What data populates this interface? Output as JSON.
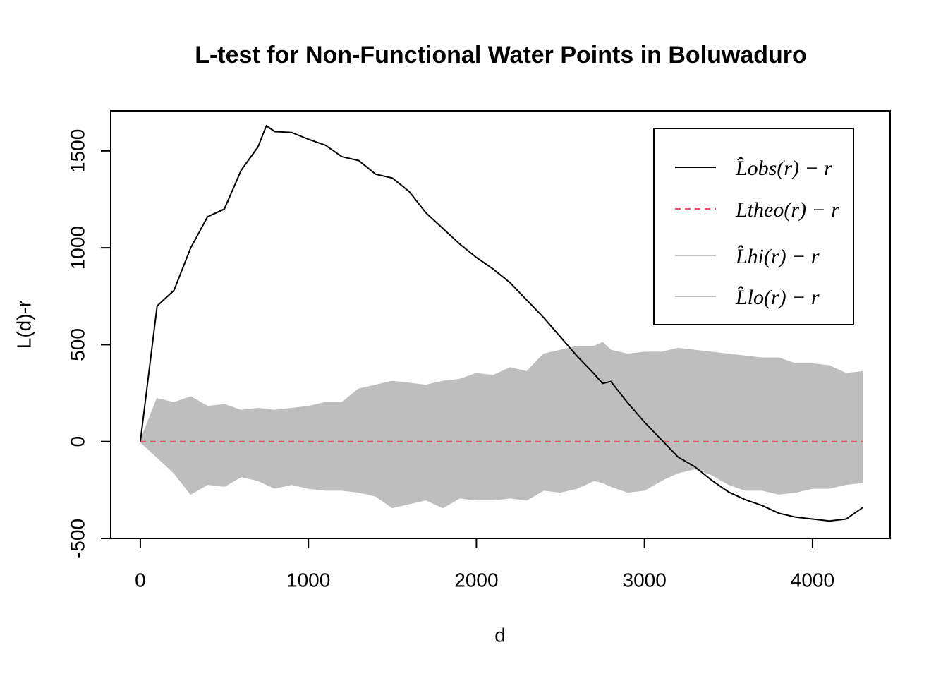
{
  "chart_data": {
    "type": "line",
    "title": "L-test for Non-Functional Water Points in Boluwaduro",
    "xlabel": "d",
    "ylabel": "L(d)-r",
    "x": [
      0,
      100,
      200,
      300,
      400,
      500,
      600,
      700,
      750,
      800,
      900,
      1000,
      1100,
      1200,
      1300,
      1400,
      1500,
      1600,
      1700,
      1800,
      1900,
      2000,
      2100,
      2200,
      2300,
      2400,
      2500,
      2600,
      2700,
      2750,
      2800,
      2900,
      3000,
      3100,
      3200,
      3300,
      3400,
      3500,
      3600,
      3700,
      3800,
      3900,
      4000,
      4100,
      4200,
      4300
    ],
    "series": [
      {
        "name": "L̂obs(r) − r",
        "color": "#000000",
        "dash": false,
        "values": [
          0,
          700,
          780,
          1000,
          1160,
          1200,
          1400,
          1520,
          1630,
          1600,
          1595,
          1560,
          1530,
          1470,
          1450,
          1380,
          1360,
          1290,
          1180,
          1100,
          1020,
          950,
          890,
          820,
          730,
          640,
          540,
          440,
          350,
          300,
          310,
          200,
          100,
          10,
          -80,
          -130,
          -200,
          -260,
          -300,
          -330,
          -370,
          -390,
          -400,
          -410,
          -400,
          -340
        ]
      },
      {
        "name": "Ltheo(r) − r",
        "color": "#df536b",
        "dash": true,
        "values": [
          0,
          0,
          0,
          0,
          0,
          0,
          0,
          0,
          0,
          0,
          0,
          0,
          0,
          0,
          0,
          0,
          0,
          0,
          0,
          0,
          0,
          0,
          0,
          0,
          0,
          0,
          0,
          0,
          0,
          0,
          0,
          0,
          0,
          0,
          0,
          0,
          0,
          0,
          0,
          0,
          0,
          0,
          0,
          0,
          0,
          0
        ]
      },
      {
        "name": "L̂hi(r) − r",
        "color": "#bebebe",
        "dash": false,
        "values": [
          0,
          220,
          200,
          230,
          180,
          190,
          160,
          170,
          165,
          160,
          170,
          180,
          200,
          200,
          270,
          290,
          310,
          300,
          290,
          310,
          320,
          350,
          340,
          380,
          360,
          450,
          470,
          490,
          490,
          510,
          470,
          450,
          460,
          460,
          480,
          470,
          460,
          450,
          440,
          430,
          430,
          400,
          400,
          390,
          350,
          360
        ]
      },
      {
        "name": "L̂lo(r) − r",
        "color": "#bebebe",
        "dash": false,
        "values": [
          0,
          -80,
          -160,
          -270,
          -220,
          -230,
          -180,
          -200,
          -220,
          -240,
          -220,
          -240,
          -250,
          -250,
          -260,
          -280,
          -340,
          -320,
          -300,
          -340,
          -290,
          -300,
          -300,
          -290,
          -300,
          -250,
          -260,
          -240,
          -200,
          -210,
          -230,
          -260,
          -250,
          -200,
          -160,
          -140,
          -170,
          -220,
          -250,
          -250,
          -270,
          -260,
          -240,
          -240,
          -220,
          -210
        ]
      }
    ],
    "envelope": {
      "color": "#bebebe"
    },
    "xlim": [
      -176,
      4462
    ],
    "ylim": [
      -500,
      1707
    ],
    "xticks": [
      0,
      1000,
      2000,
      3000,
      4000
    ],
    "yticks": [
      -500,
      0,
      500,
      1000,
      1500
    ],
    "legend": "top-right",
    "grid": false
  }
}
